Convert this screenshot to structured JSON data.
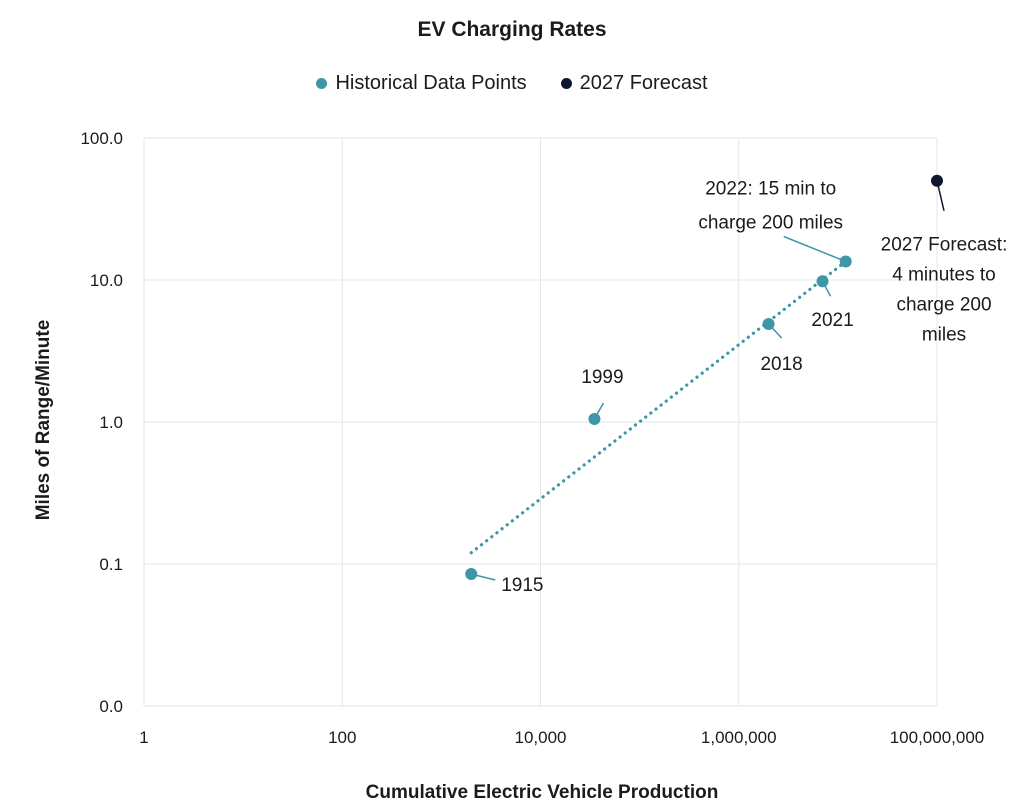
{
  "chart_data": {
    "type": "scatter",
    "title": "EV Charging Rates",
    "xlabel": "Cumulative Electric Vehicle Production",
    "ylabel": "Miles of Range/Minute",
    "x_scale": "log",
    "y_scale": "log",
    "xlim": [
      1,
      100000000
    ],
    "ylim": [
      0.01,
      100
    ],
    "x_ticks": [
      {
        "value": 1,
        "label": "1"
      },
      {
        "value": 100,
        "label": "100"
      },
      {
        "value": 10000,
        "label": "10,000"
      },
      {
        "value": 1000000,
        "label": "1,000,000"
      },
      {
        "value": 100000000,
        "label": "100,000,000"
      }
    ],
    "y_ticks": [
      {
        "value": 0.01,
        "label": "0.0"
      },
      {
        "value": 0.1,
        "label": "0.1"
      },
      {
        "value": 1,
        "label": "1.0"
      },
      {
        "value": 10,
        "label": "10.0"
      },
      {
        "value": 100,
        "label": "100.0"
      }
    ],
    "grid": true,
    "legend_position": "top",
    "series": [
      {
        "name": "Historical Data Points",
        "color": "#3e97a6",
        "points": [
          {
            "label": "1915",
            "x": 2000,
            "y": 0.085
          },
          {
            "label": "1999",
            "x": 35000,
            "y": 1.05
          },
          {
            "label": "2018",
            "x": 2000000,
            "y": 4.9
          },
          {
            "label": "2021",
            "x": 7000000,
            "y": 9.8
          },
          {
            "label": "2022: 15 min to charge 200 miles",
            "x": 12000000,
            "y": 13.5
          }
        ]
      },
      {
        "name": "2027 Forecast",
        "color": "#0f1630",
        "points": [
          {
            "label": "2027 Forecast: 4 minutes to charge 200 miles",
            "x": 100000000,
            "y": 50
          }
        ]
      }
    ],
    "trendline": {
      "style": "dotted",
      "color": "#3e97a6",
      "from": {
        "x": 2000,
        "y": 0.12
      },
      "to": {
        "x": 12000000,
        "y": 13.5
      }
    },
    "annotations": [
      {
        "lines": [
          "1915"
        ],
        "point": 0,
        "series": 0
      },
      {
        "lines": [
          "1999"
        ],
        "point": 1,
        "series": 0
      },
      {
        "lines": [
          "2018"
        ],
        "point": 2,
        "series": 0
      },
      {
        "lines": [
          "2021"
        ],
        "point": 3,
        "series": 0
      },
      {
        "lines": [
          "2022: 15 min to",
          "charge 200 miles"
        ],
        "point": 4,
        "series": 0
      },
      {
        "lines": [
          "2027 Forecast:",
          "4 minutes to",
          "charge 200",
          "miles"
        ],
        "point": 0,
        "series": 1
      }
    ]
  }
}
